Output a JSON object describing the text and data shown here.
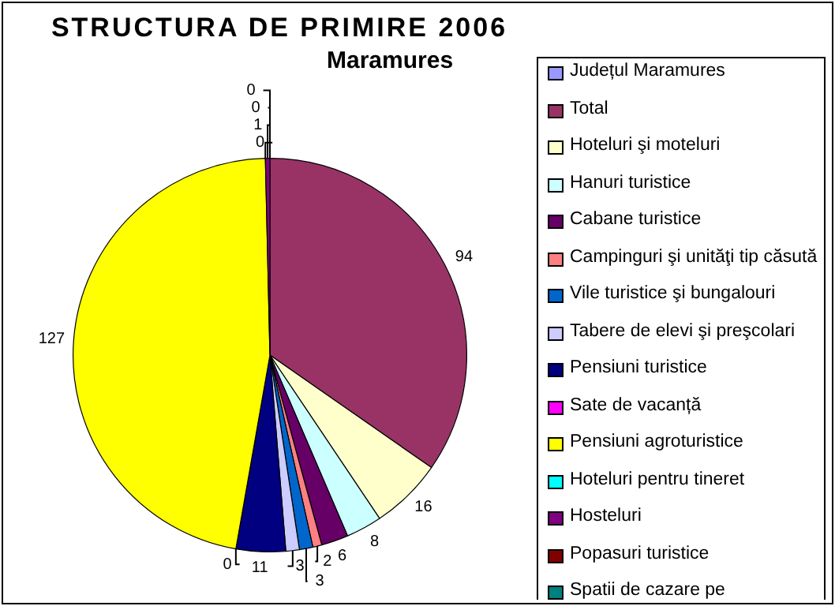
{
  "chart_data": {
    "type": "pie",
    "title": "STRUCTURA DE PRIMIRE 2006",
    "subtitle": "Maramures",
    "categories": [
      "Județul  Maramures",
      "Total",
      "Hoteluri şi moteluri",
      "Hanuri turistice",
      "Cabane turistice",
      "Campinguri şi unităţi tip căsută",
      "Vile turistice şi bungalouri",
      "Tabere de elevi şi preşcolari",
      "Pensiuni turistice",
      "Sate de vacanță",
      "Pensiuni agroturistice",
      "Hoteluri pentru tineret",
      "Hosteluri",
      "Popasuri turistice",
      "Spatii de cazare pe"
    ],
    "values": [
      null,
      94,
      16,
      8,
      6,
      2,
      3,
      3,
      11,
      0,
      127,
      0,
      1,
      0,
      0
    ],
    "colors": [
      "#9999ff",
      "#993366",
      "#ffffcc",
      "#ccffff",
      "#660066",
      "#ff8080",
      "#0066cc",
      "#ccccff",
      "#000080",
      "#ff00ff",
      "#ffff00",
      "#00ffff",
      "#800080",
      "#800000",
      "#008080"
    ],
    "value_labels": [
      null,
      "94",
      "16",
      "8",
      "6",
      "2",
      "3",
      "3",
      "11",
      "0",
      "127",
      "0",
      "1",
      "0",
      "0"
    ],
    "legend": "right"
  }
}
